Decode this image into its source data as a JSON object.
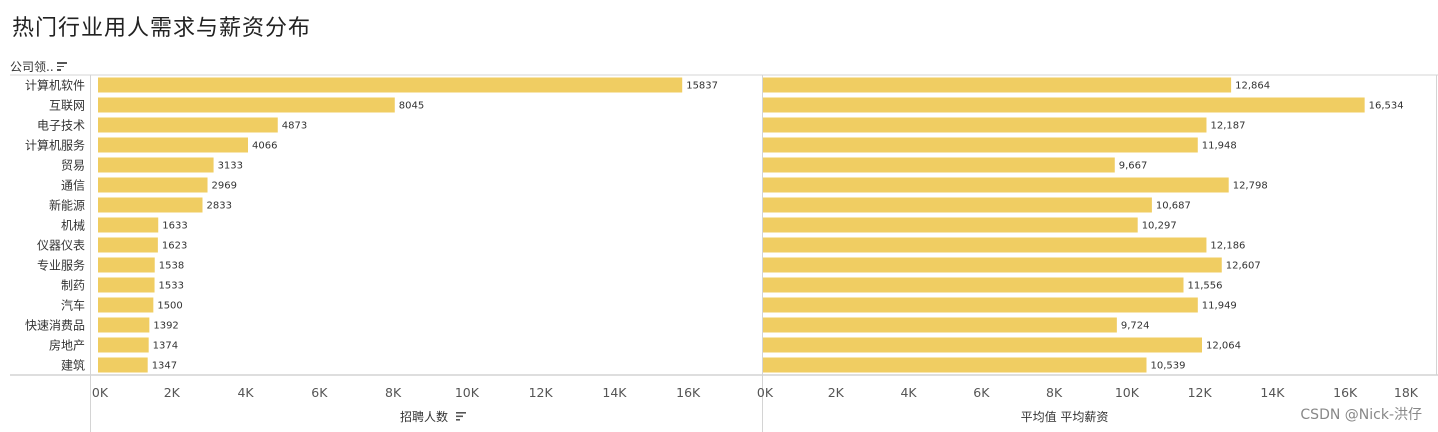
{
  "title": "热门行业用人需求与薪资分布",
  "category_header": "公司领..",
  "watermark": "CSDN @Nick-洪仔",
  "colors": {
    "bar": "#f0cd62",
    "grid": "#d4d4d4",
    "axis": "#bcbcbc"
  },
  "chart_data": [
    {
      "type": "bar",
      "orientation": "horizontal",
      "categories": [
        "计算机软件",
        "互联网",
        "电子技术",
        "计算机服务",
        "贸易",
        "通信",
        "新能源",
        "机械",
        "仪器仪表",
        "专业服务",
        "制药",
        "汽车",
        "快速消费品",
        "房地产",
        "建筑"
      ],
      "values": [
        15837,
        8045,
        4873,
        4066,
        3133,
        2969,
        2833,
        1633,
        1623,
        1538,
        1533,
        1500,
        1392,
        1374,
        1347
      ],
      "value_labels": [
        "15837",
        "8045",
        "4873",
        "4066",
        "3133",
        "2969",
        "2833",
        "1633",
        "1623",
        "1538",
        "1533",
        "1500",
        "1392",
        "1374",
        "1347"
      ],
      "xlabel": "招聘人数",
      "xlim": [
        0,
        18000
      ],
      "ticks": [
        0,
        2000,
        4000,
        6000,
        8000,
        10000,
        12000,
        14000,
        16000
      ],
      "tick_labels": [
        "0K",
        "2K",
        "4K",
        "6K",
        "8K",
        "10K",
        "12K",
        "14K",
        "16K"
      ]
    },
    {
      "type": "bar",
      "orientation": "horizontal",
      "categories": [
        "计算机软件",
        "互联网",
        "电子技术",
        "计算机服务",
        "贸易",
        "通信",
        "新能源",
        "机械",
        "仪器仪表",
        "专业服务",
        "制药",
        "汽车",
        "快速消费品",
        "房地产",
        "建筑"
      ],
      "values": [
        12864,
        16534,
        12187,
        11948,
        9667,
        12798,
        10687,
        10297,
        12186,
        12607,
        11556,
        11949,
        9724,
        12064,
        10539
      ],
      "value_labels": [
        "12,864",
        "16,534",
        "12,187",
        "11,948",
        "9,667",
        "12,798",
        "10,687",
        "10,297",
        "12,186",
        "12,607",
        "11,556",
        "11,949",
        "9,724",
        "12,064",
        "10,539"
      ],
      "xlabel": "平均值 平均薪资",
      "xlim": [
        0,
        18000
      ],
      "ticks": [
        0,
        2000,
        4000,
        6000,
        8000,
        10000,
        12000,
        14000,
        16000,
        18000
      ],
      "tick_labels": [
        "0K",
        "2K",
        "4K",
        "6K",
        "8K",
        "10K",
        "12K",
        "14K",
        "16K",
        "18K"
      ]
    }
  ]
}
